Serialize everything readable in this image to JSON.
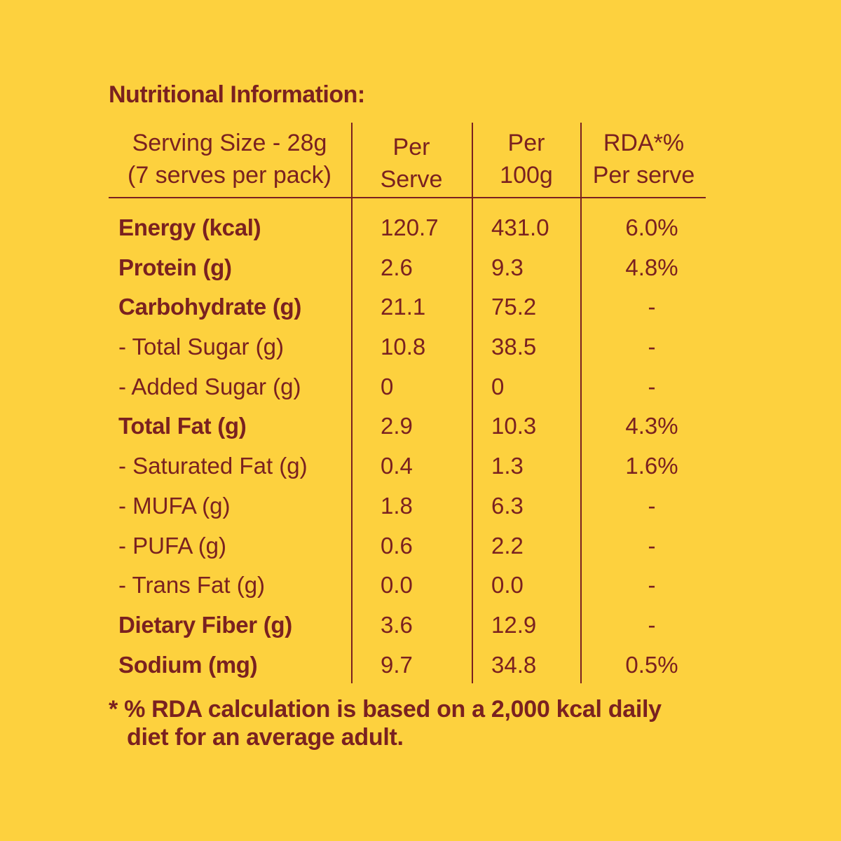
{
  "title": "Nutritional Information:",
  "headers": {
    "serving": [
      "Serving Size - 28g",
      "(7 serves per pack)"
    ],
    "per_serve": [
      "Per",
      "Serve"
    ],
    "per_100g": [
      "Per",
      "100g"
    ],
    "rda": [
      "RDA*%",
      "Per serve"
    ]
  },
  "rows": [
    {
      "name": "Energy (kcal)",
      "bold": true,
      "serve": "120.7",
      "per100": "431.0",
      "rda": "6.0%"
    },
    {
      "name": "Protein (g)",
      "bold": true,
      "serve": "2.6",
      "per100": "9.3",
      "rda": "4.8%"
    },
    {
      "name": "Carbohydrate (g)",
      "bold": true,
      "serve": "21.1",
      "per100": "75.2",
      "rda": "-"
    },
    {
      "name": "- Total Sugar (g)",
      "bold": false,
      "serve": "10.8",
      "per100": "38.5",
      "rda": "-"
    },
    {
      "name": "- Added Sugar (g)",
      "bold": false,
      "serve": "0",
      "per100": "0",
      "rda": "-"
    },
    {
      "name": "Total Fat (g)",
      "bold": true,
      "serve": "2.9",
      "per100": "10.3",
      "rda": "4.3%"
    },
    {
      "name": "- Saturated Fat (g)",
      "bold": false,
      "serve": "0.4",
      "per100": "1.3",
      "rda": "1.6%"
    },
    {
      "name": "- MUFA (g)",
      "bold": false,
      "serve": "1.8",
      "per100": "6.3",
      "rda": "-"
    },
    {
      "name": "- PUFA (g)",
      "bold": false,
      "serve": "0.6",
      "per100": "2.2",
      "rda": "-"
    },
    {
      "name": "- Trans Fat (g)",
      "bold": false,
      "serve": "0.0",
      "per100": "0.0",
      "rda": "-"
    },
    {
      "name": "Dietary Fiber (g)",
      "bold": true,
      "serve": "3.6",
      "per100": "12.9",
      "rda": "-"
    },
    {
      "name": "Sodium (mg)",
      "bold": true,
      "serve": "9.7",
      "per100": "34.8",
      "rda": "0.5%"
    }
  ],
  "footnote": [
    "* % RDA calculation is based on a 2,000 kcal daily",
    "diet for an average adult."
  ],
  "colors": {
    "background": "#fdd13e",
    "text": "#7a2120"
  }
}
